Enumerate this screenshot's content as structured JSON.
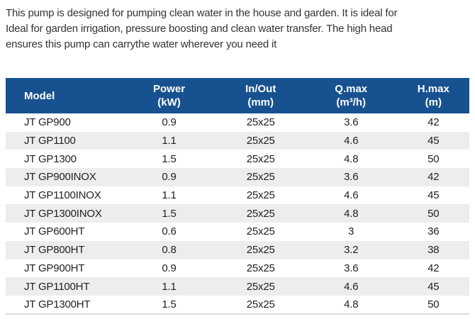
{
  "description": {
    "lines": [
      "This pump is designed for pumping clean water in the house and garden. It is ideal for",
      "Ideal for garden irrigation, pressure boosting and clean water transfer. The high head",
      "ensures this pump can carrythe water wherever you need it"
    ]
  },
  "table": {
    "columns": [
      {
        "key": "model",
        "label": "Model",
        "unit": ""
      },
      {
        "key": "power",
        "label": "Power",
        "unit": "(kW)"
      },
      {
        "key": "inout",
        "label": "In/Out",
        "unit": "(mm)"
      },
      {
        "key": "qmax",
        "label": "Q.max",
        "unit": "(m³/h)"
      },
      {
        "key": "hmax",
        "label": "H.max",
        "unit": "(m)"
      }
    ],
    "rows": [
      [
        "JT GP900",
        "0.9",
        "25x25",
        "3.6",
        "42"
      ],
      [
        "JT GP1100",
        "1.1",
        "25x25",
        "4.6",
        "45"
      ],
      [
        "JT GP1300",
        "1.5",
        "25x25",
        "4.8",
        "50"
      ],
      [
        "JT GP900INOX",
        "0.9",
        "25x25",
        "3.6",
        "42"
      ],
      [
        "JT GP1100INOX",
        "1.1",
        "25x25",
        "4.6",
        "45"
      ],
      [
        "JT GP1300INOX",
        "1.5",
        "25x25",
        "4.8",
        "50"
      ],
      [
        "JT GP600HT",
        "0.6",
        "25x25",
        "3",
        "36"
      ],
      [
        "JT GP800HT",
        "0.8",
        "25x25",
        "3.2",
        "38"
      ],
      [
        "JT GP900HT",
        "0.9",
        "25x25",
        "3.6",
        "42"
      ],
      [
        "JT GP1100HT",
        "1.1",
        "25x25",
        "4.6",
        "45"
      ],
      [
        "JT GP1300HT",
        "1.5",
        "25x25",
        "4.8",
        "50"
      ]
    ]
  },
  "colors": {
    "header_bg": "#17518f",
    "header_text": "#ffffff",
    "row_stripe": "#ededed",
    "body_text": "#333333",
    "table_text": "#222222"
  }
}
